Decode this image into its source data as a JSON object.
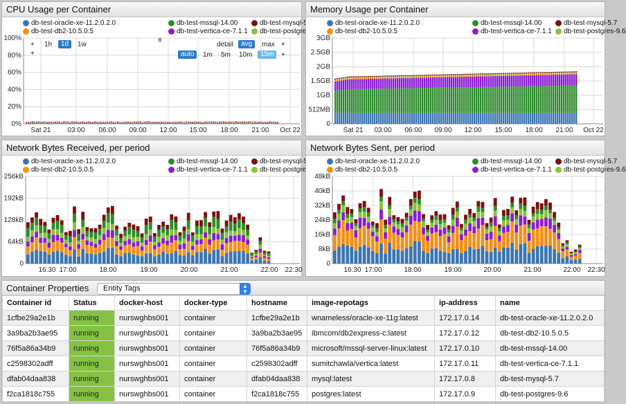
{
  "colors": {
    "oracle": "#3b76b1",
    "mssql": "#2e8b2e",
    "mysql": "#7b1010",
    "db2": "#f58f17",
    "vertica": "#8a1cd6",
    "postgres": "#88c23b"
  },
  "legend": [
    {
      "key": "oracle",
      "label": "db-test-oracle-xe-11.2.0.2.0"
    },
    {
      "key": "mssql",
      "label": "db-test-mssql-14.00"
    },
    {
      "key": "mysql",
      "label": "db-test-mysql-5.7"
    },
    {
      "key": "db2",
      "label": "db-test-db2-10.5.0.5"
    },
    {
      "key": "vertica",
      "label": "db-test-vertica-ce-7.1.1"
    },
    {
      "key": "postgres",
      "label": "db-test-postgres-9.6"
    }
  ],
  "charts": {
    "cpu": {
      "title": "CPU Usage per Container",
      "ylabels": [
        "100%",
        "80%",
        "60%",
        "40%",
        "20%",
        "0%"
      ],
      "xlabels": [
        "Sat 21",
        "03:00",
        "06:00",
        "09:00",
        "12:00",
        "15:00",
        "18:00",
        "21:00",
        "Oct 22"
      ],
      "controls": {
        "plus": "+",
        "range_1h": "1h",
        "range_1d": "1d",
        "range_1w": "1w",
        "menu": "≡",
        "detail": "detail",
        "avg": "avg",
        "max": "max",
        "auto": "auto",
        "p1m": "1m",
        "p5m": "5m",
        "p10m": "10m",
        "p15m": "15m"
      }
    },
    "memory": {
      "title": "Memory Usage per Container",
      "ylabels": [
        "3GB",
        "2.5GB",
        "2GB",
        "1.5GB",
        "1GB",
        "512MB",
        "0"
      ],
      "xlabels": [
        "Sat 21",
        "03:00",
        "06:00",
        "09:00",
        "12:00",
        "15:00",
        "18:00",
        "21:00",
        "Oct 22"
      ]
    },
    "netrx": {
      "title": "Network Bytes Received, per period",
      "ylabels": [
        "256kB",
        "192kB",
        "128kB",
        "64kB",
        "0"
      ],
      "xlabels": [
        "16:30",
        "17:00",
        "18:00",
        "19:00",
        "20:00",
        "21:00",
        "22:00",
        "22:30"
      ]
    },
    "nettx": {
      "title": "Network Bytes Sent, per period",
      "ylabels": [
        "48kB",
        "40kB",
        "32kB",
        "24kB",
        "16kB",
        "8kB",
        "0"
      ],
      "xlabels": [
        "16:30",
        "17:00",
        "18:00",
        "19:00",
        "20:00",
        "21:00",
        "22:00",
        "22:30"
      ]
    }
  },
  "chart_data": [
    {
      "type": "bar",
      "title": "CPU Usage per Container",
      "ylim": [
        0,
        100
      ],
      "x_range": [
        "Sat 21",
        "Oct 22"
      ],
      "series": [
        {
          "name": "db-test-oracle-xe-11.2.0.2.0",
          "approx_value": 0.5
        },
        {
          "name": "db-test-mssql-14.00",
          "approx_value": 0.6
        },
        {
          "name": "db-test-mysql-5.7",
          "approx_value": 0.3
        },
        {
          "name": "db-test-db2-10.5.0.5",
          "approx_value": 0.4
        },
        {
          "name": "db-test-vertica-ce-7.1.1",
          "approx_value": 0.5
        },
        {
          "name": "db-test-postgres-9.6",
          "approx_value": 0.2
        }
      ]
    },
    {
      "type": "bar",
      "title": "Memory Usage per Container",
      "ylim": [
        0,
        3
      ],
      "x_range": [
        "Sat 21",
        "Oct 22"
      ],
      "series": [
        {
          "name": "db-test-oracle-xe-11.2.0.2.0",
          "approx_value": 0.38
        },
        {
          "name": "db-test-mssql-14.00",
          "approx_value": 0.85
        },
        {
          "name": "db-test-mysql-5.7",
          "approx_value": 0.03
        },
        {
          "name": "db-test-db2-10.5.0.5",
          "approx_value": 0.04
        },
        {
          "name": "db-test-vertica-ce-7.1.1",
          "approx_value": 0.35
        },
        {
          "name": "db-test-postgres-9.6",
          "approx_value": 0.03
        }
      ]
    },
    {
      "type": "bar",
      "title": "Network Bytes Received, per period",
      "ylim": [
        0,
        256
      ],
      "x_range": [
        "16:30",
        "22:30"
      ],
      "series": [
        {
          "name": "db-test-oracle-xe-11.2.0.2.0",
          "approx_value": 30
        },
        {
          "name": "db-test-db2-10.5.0.5",
          "approx_value": 25
        },
        {
          "name": "db-test-vertica-ce-7.1.1",
          "approx_value": 15
        },
        {
          "name": "db-test-postgres-9.6",
          "approx_value": 15
        },
        {
          "name": "db-test-mssql-14.00",
          "approx_value": 20
        },
        {
          "name": "db-test-mysql-5.7",
          "approx_value": 15
        }
      ]
    },
    {
      "type": "bar",
      "title": "Network Bytes Sent, per period",
      "ylim": [
        0,
        48
      ],
      "x_range": [
        "16:30",
        "22:30"
      ],
      "series": [
        {
          "name": "db-test-oracle-xe-11.2.0.2.0",
          "approx_value": 8
        },
        {
          "name": "db-test-db2-10.5.0.5",
          "approx_value": 9
        },
        {
          "name": "db-test-vertica-ce-7.1.1",
          "approx_value": 4
        },
        {
          "name": "db-test-postgres-9.6",
          "approx_value": 3
        },
        {
          "name": "db-test-mssql-14.00",
          "approx_value": 2
        },
        {
          "name": "db-test-mysql-5.7",
          "approx_value": 3
        }
      ]
    }
  ],
  "properties": {
    "title": "Container Properties",
    "selector": "Entity Tags",
    "columns": [
      "Container id",
      "Status",
      "docker-host",
      "docker-type",
      "hostname",
      "image-repotags",
      "ip-address",
      "name"
    ],
    "rows": [
      [
        "1cfbe29a2e1b",
        "running",
        "nurswghbs001",
        "container",
        "1cfbe29a2e1b",
        "wnameless/oracle-xe-11g:latest",
        "172.17.0.14",
        "db-test-oracle-xe-11.2.0.2.0"
      ],
      [
        "3a9ba2b3ae95",
        "running",
        "nurswghbs001",
        "container",
        "3a9ba2b3ae95",
        "ibmcom/db2express-c:latest",
        "172.17.0.12",
        "db-test-db2-10.5.0.5"
      ],
      [
        "76f5a86a34b9",
        "running",
        "nurswghbs001",
        "container",
        "76f5a86a34b9",
        "microsoft/mssql-server-linux:latest",
        "172.17.0.10",
        "db-test-mssql-14.00"
      ],
      [
        "c2598302adff",
        "running",
        "nurswghbs001",
        "container",
        "c2598302adff",
        "sumitchawla/vertica:latest",
        "172.17.0.11",
        "db-test-vertica-ce-7.1.1"
      ],
      [
        "dfab04daa838",
        "running",
        "nurswghbs001",
        "container",
        "dfab04daa838",
        "mysql:latest",
        "172.17.0.8",
        "db-test-mysql-5.7"
      ],
      [
        "f2ca1818c755",
        "running",
        "nurswghbs001",
        "container",
        "f2ca1818c755",
        "postgres:latest",
        "172.17.0.9",
        "db-test-postgres-9.6"
      ]
    ]
  }
}
